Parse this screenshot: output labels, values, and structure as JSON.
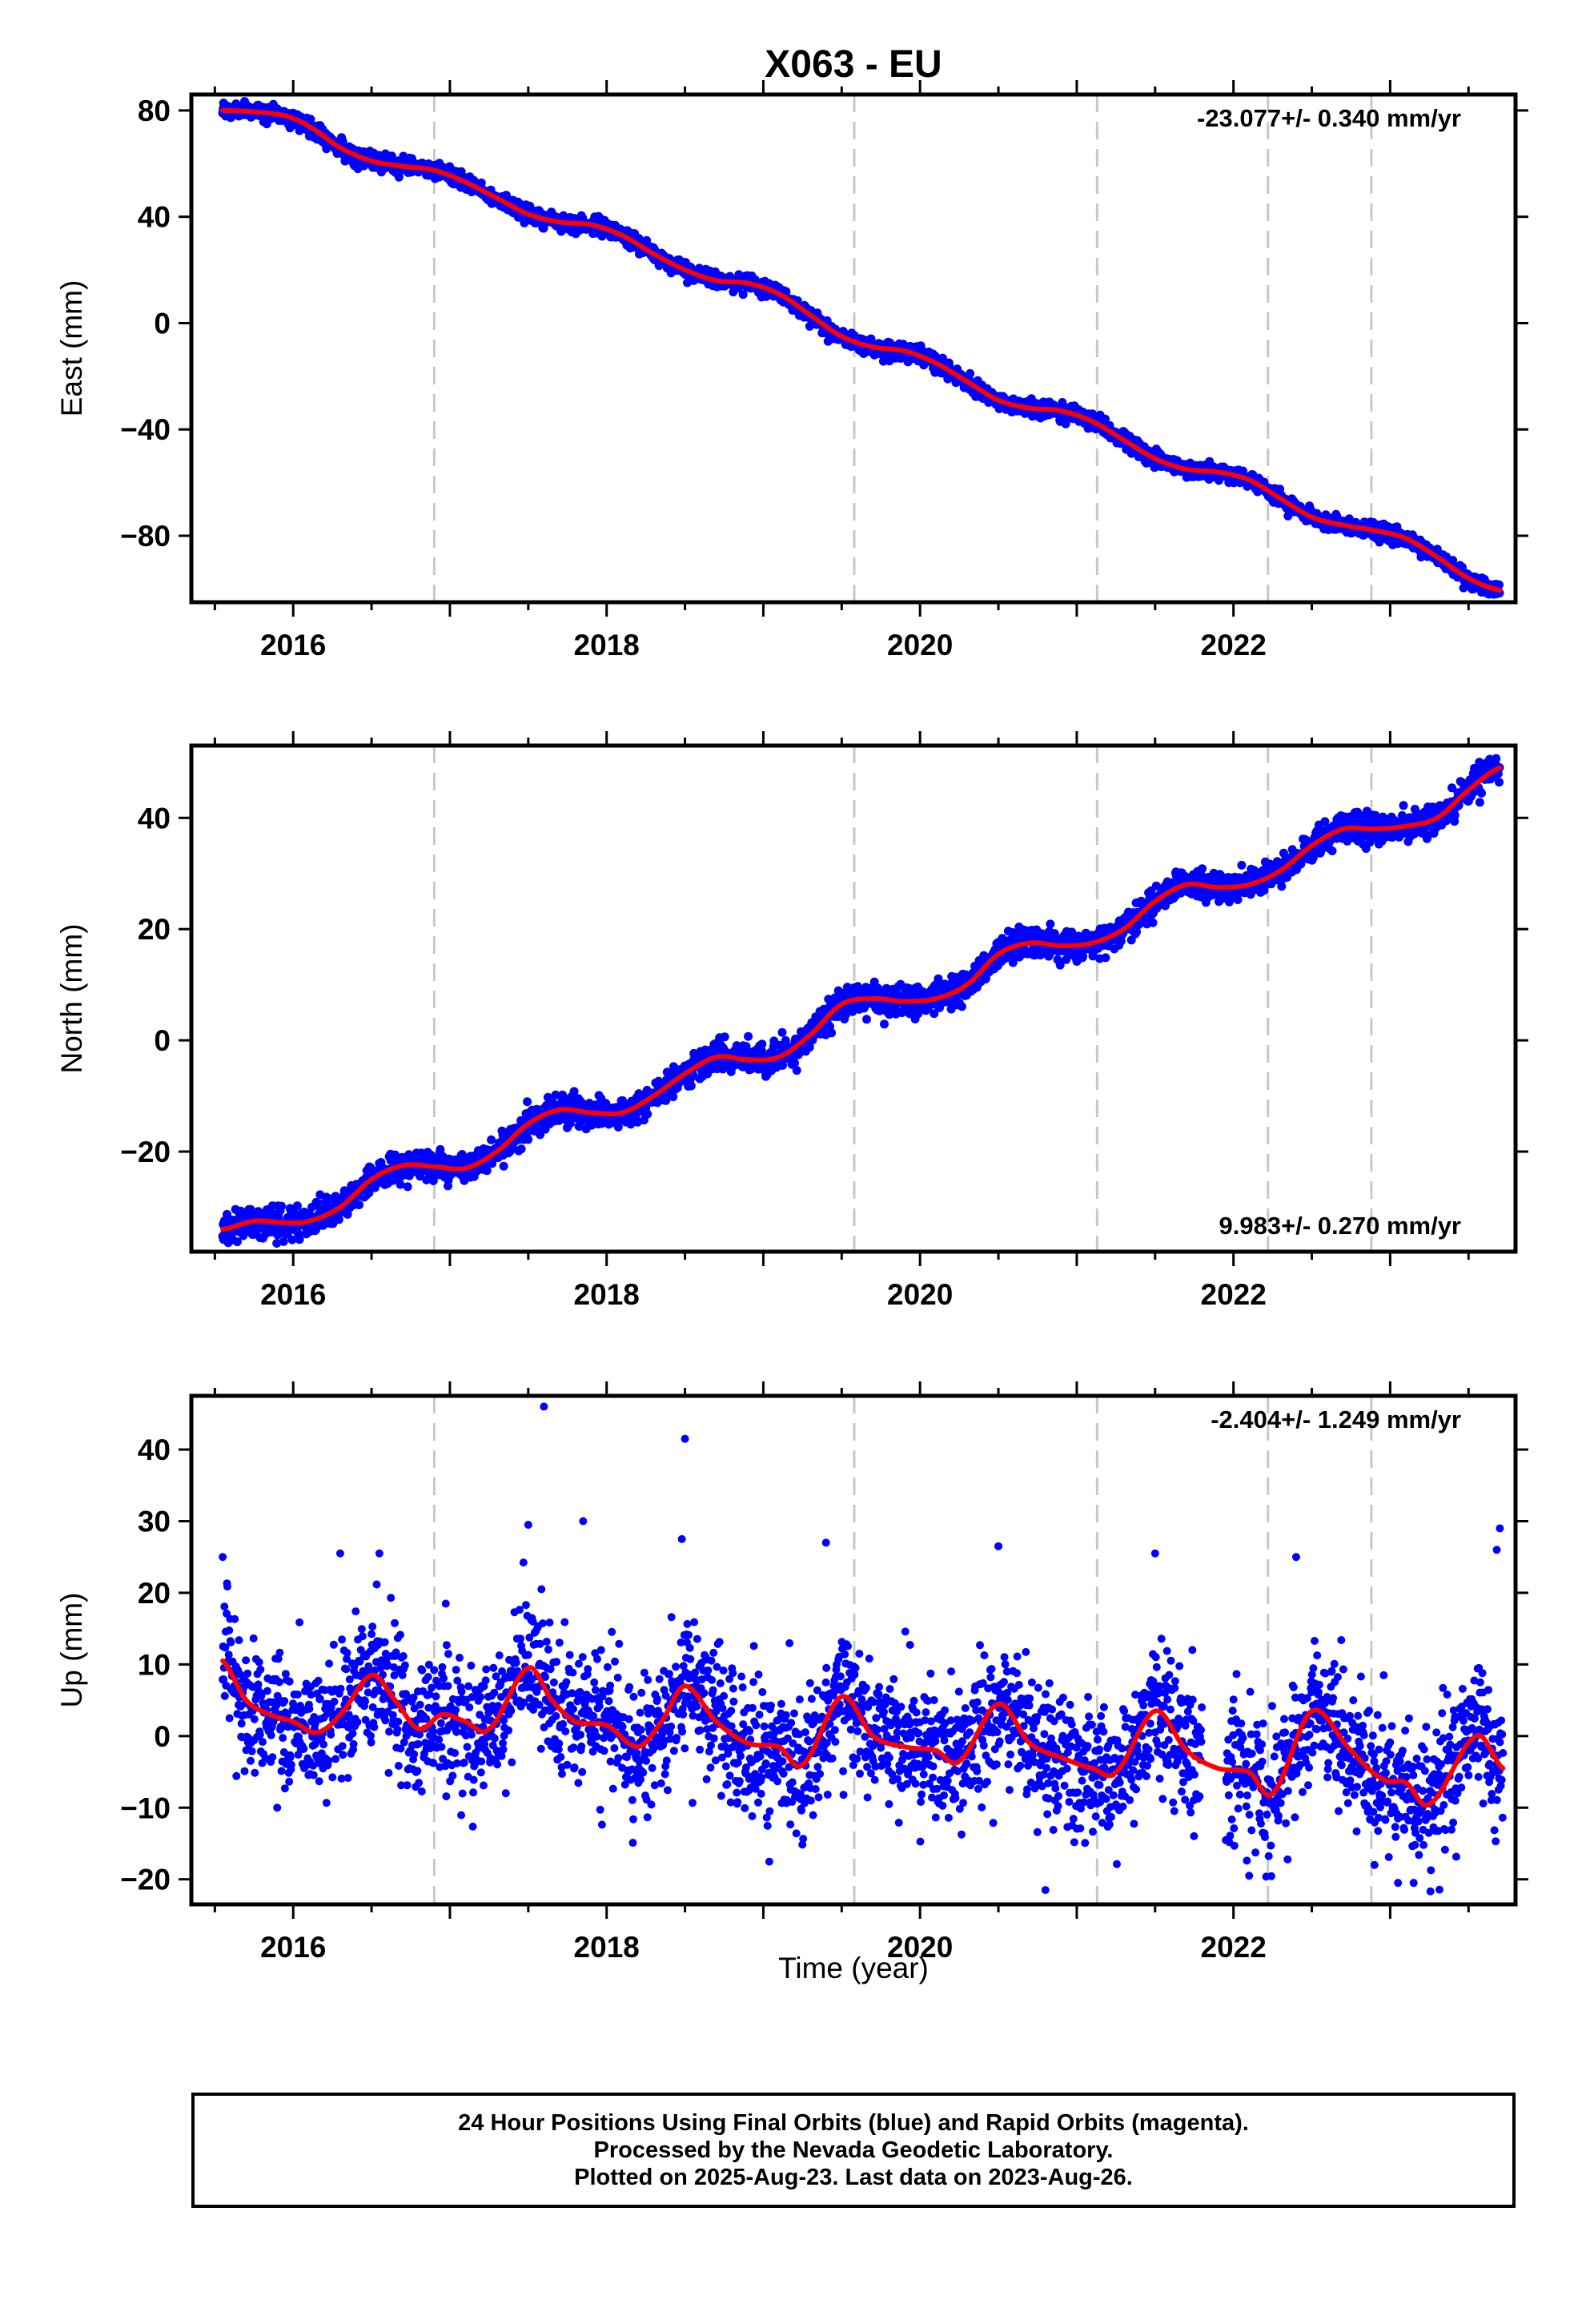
{
  "title": "X063 - EU",
  "xlabel": "Time (year)",
  "footer": {
    "line1": "24 Hour Positions Using Final Orbits (blue) and Rapid Orbits (magenta).",
    "line2": "Processed by the Nevada Geodetic Laboratory.",
    "line3": "Plotted on 2025-Aug-23. Last data on 2023-Aug-26."
  },
  "colors": {
    "final_orbits": "#0000ff",
    "fit_line": "#ff0000",
    "event_lines": "#c8c8c8"
  },
  "chart_data": [
    {
      "type": "scatter",
      "component": "East",
      "ylabel": "East (mm)",
      "xlim": [
        2015.35,
        2023.8
      ],
      "ylim": [
        -105,
        86
      ],
      "xticks": [
        2016,
        2018,
        2020,
        2022
      ],
      "yticks": [
        80,
        40,
        0,
        -40,
        -80
      ],
      "ytick_labels": [
        "80",
        "40",
        "0",
        "−40",
        "−80"
      ],
      "rate_label": "-23.077+/- 0.340 mm/yr",
      "rate_label_position": "top-right",
      "event_lines_x": [
        2016.9,
        2019.58,
        2021.13,
        2022.22,
        2022.88
      ],
      "fit_knots": [
        [
          2015.55,
          80
        ],
        [
          2015.75,
          79.5
        ],
        [
          2015.95,
          78
        ],
        [
          2016.1,
          74
        ],
        [
          2016.3,
          66
        ],
        [
          2016.5,
          61
        ],
        [
          2016.7,
          59
        ],
        [
          2016.9,
          57.5
        ],
        [
          2017.1,
          53
        ],
        [
          2017.3,
          47
        ],
        [
          2017.5,
          41
        ],
        [
          2017.7,
          38
        ],
        [
          2017.9,
          37
        ],
        [
          2018.1,
          33
        ],
        [
          2018.3,
          26
        ],
        [
          2018.5,
          20
        ],
        [
          2018.7,
          16
        ],
        [
          2018.9,
          15
        ],
        [
          2019.1,
          11
        ],
        [
          2019.3,
          3
        ],
        [
          2019.5,
          -5
        ],
        [
          2019.7,
          -9
        ],
        [
          2019.9,
          -10.5
        ],
        [
          2020.1,
          -15
        ],
        [
          2020.3,
          -22
        ],
        [
          2020.5,
          -29
        ],
        [
          2020.7,
          -32
        ],
        [
          2020.9,
          -33
        ],
        [
          2021.1,
          -37
        ],
        [
          2021.3,
          -44
        ],
        [
          2021.5,
          -51
        ],
        [
          2021.7,
          -55
        ],
        [
          2021.9,
          -56
        ],
        [
          2022.1,
          -59
        ],
        [
          2022.3,
          -66
        ],
        [
          2022.5,
          -73
        ],
        [
          2022.7,
          -76
        ],
        [
          2022.9,
          -78
        ],
        [
          2023.1,
          -81
        ],
        [
          2023.3,
          -88
        ],
        [
          2023.5,
          -96
        ],
        [
          2023.7,
          -100.5
        ]
      ],
      "scatter_sigma_mm": 1.5,
      "outliers": []
    },
    {
      "type": "scatter",
      "component": "North",
      "ylabel": "North (mm)",
      "xlim": [
        2015.35,
        2023.8
      ],
      "ylim": [
        -38,
        53
      ],
      "xticks": [
        2016,
        2018,
        2020,
        2022
      ],
      "yticks": [
        40,
        20,
        0,
        -20
      ],
      "ytick_labels": [
        "40",
        "20",
        "0",
        "−20"
      ],
      "rate_label": "9.983+/- 0.270 mm/yr",
      "rate_label_position": "bottom-right",
      "event_lines_x": [
        2016.9,
        2019.58,
        2021.13,
        2022.22,
        2022.88
      ],
      "fit_knots": [
        [
          2015.55,
          -34
        ],
        [
          2015.75,
          -32.5
        ],
        [
          2015.95,
          -32.8
        ],
        [
          2016.1,
          -32.5
        ],
        [
          2016.3,
          -30
        ],
        [
          2016.5,
          -25
        ],
        [
          2016.7,
          -22.5
        ],
        [
          2016.9,
          -22.7
        ],
        [
          2017.1,
          -23
        ],
        [
          2017.3,
          -20
        ],
        [
          2017.5,
          -15
        ],
        [
          2017.7,
          -12.5
        ],
        [
          2017.9,
          -13
        ],
        [
          2018.1,
          -13
        ],
        [
          2018.3,
          -10
        ],
        [
          2018.5,
          -6
        ],
        [
          2018.7,
          -3
        ],
        [
          2018.9,
          -3.5
        ],
        [
          2019.1,
          -3
        ],
        [
          2019.3,
          1
        ],
        [
          2019.5,
          6.5
        ],
        [
          2019.7,
          7.5
        ],
        [
          2019.9,
          7
        ],
        [
          2020.1,
          7.5
        ],
        [
          2020.3,
          10
        ],
        [
          2020.5,
          15.5
        ],
        [
          2020.7,
          17.5
        ],
        [
          2020.9,
          17
        ],
        [
          2021.1,
          17.5
        ],
        [
          2021.3,
          20
        ],
        [
          2021.5,
          25
        ],
        [
          2021.7,
          28
        ],
        [
          2021.9,
          27.5
        ],
        [
          2022.1,
          28
        ],
        [
          2022.3,
          30.5
        ],
        [
          2022.5,
          35
        ],
        [
          2022.7,
          38
        ],
        [
          2022.9,
          38
        ],
        [
          2023.1,
          38.5
        ],
        [
          2023.3,
          40
        ],
        [
          2023.5,
          45
        ],
        [
          2023.7,
          49
        ]
      ],
      "scatter_sigma_mm": 1.3,
      "outliers": []
    },
    {
      "type": "scatter",
      "component": "Up",
      "ylabel": "Up (mm)",
      "xlim": [
        2015.35,
        2023.8
      ],
      "ylim": [
        -23.5,
        47.5
      ],
      "xticks": [
        2016,
        2018,
        2020,
        2022
      ],
      "yticks": [
        40,
        30,
        20,
        10,
        0,
        -10,
        -20
      ],
      "ytick_labels": [
        "40",
        "30",
        "20",
        "10",
        "0",
        "−10",
        "−20"
      ],
      "rate_label": "-2.404+/- 1.249 mm/yr",
      "rate_label_position": "top-right",
      "event_lines_x": [
        2016.9,
        2019.58,
        2021.13,
        2022.22,
        2022.88
      ],
      "fit_knots": [
        [
          2015.55,
          10.5
        ],
        [
          2015.7,
          5
        ],
        [
          2015.85,
          3
        ],
        [
          2016.0,
          2
        ],
        [
          2016.15,
          0.5
        ],
        [
          2016.3,
          3
        ],
        [
          2016.5,
          8.5
        ],
        [
          2016.65,
          5
        ],
        [
          2016.8,
          1
        ],
        [
          2016.95,
          3
        ],
        [
          2017.1,
          2
        ],
        [
          2017.25,
          1
        ],
        [
          2017.5,
          9.5
        ],
        [
          2017.65,
          5
        ],
        [
          2017.8,
          2
        ],
        [
          2018.0,
          1.5
        ],
        [
          2018.2,
          -1.5
        ],
        [
          2018.35,
          2
        ],
        [
          2018.5,
          7
        ],
        [
          2018.7,
          2
        ],
        [
          2018.9,
          -1
        ],
        [
          2019.1,
          -1.5
        ],
        [
          2019.25,
          -4
        ],
        [
          2019.5,
          5.5
        ],
        [
          2019.7,
          0
        ],
        [
          2019.9,
          -1.5
        ],
        [
          2020.1,
          -2
        ],
        [
          2020.25,
          -3.5
        ],
        [
          2020.5,
          4.5
        ],
        [
          2020.7,
          -1
        ],
        [
          2020.9,
          -3
        ],
        [
          2021.1,
          -4.5
        ],
        [
          2021.25,
          -5
        ],
        [
          2021.5,
          3.5
        ],
        [
          2021.7,
          -2
        ],
        [
          2021.9,
          -4.5
        ],
        [
          2022.1,
          -5
        ],
        [
          2022.25,
          -8
        ],
        [
          2022.5,
          3.5
        ],
        [
          2022.75,
          -2
        ],
        [
          2022.95,
          -6
        ],
        [
          2023.1,
          -6.5
        ],
        [
          2023.25,
          -9.5
        ],
        [
          2023.55,
          0
        ],
        [
          2023.72,
          -4.5
        ]
      ],
      "scatter_sigma_mm": 4.8,
      "outliers": [
        [
          2017.6,
          46
        ],
        [
          2018.5,
          41.5
        ],
        [
          2017.85,
          30
        ],
        [
          2017.5,
          29.5
        ],
        [
          2019.4,
          27
        ],
        [
          2018.48,
          27.5
        ],
        [
          2023.7,
          29
        ],
        [
          2023.68,
          26
        ],
        [
          2016.55,
          25.5
        ],
        [
          2016.3,
          25.5
        ],
        [
          2015.55,
          25
        ],
        [
          2020.5,
          26.5
        ],
        [
          2021.5,
          25.5
        ],
        [
          2022.4,
          25
        ],
        [
          2020.8,
          -21.5
        ],
        [
          2022.1,
          -19.5
        ],
        [
          2023.05,
          -20.5
        ],
        [
          2023.15,
          -20.5
        ],
        [
          2022.9,
          -18
        ]
      ]
    }
  ]
}
